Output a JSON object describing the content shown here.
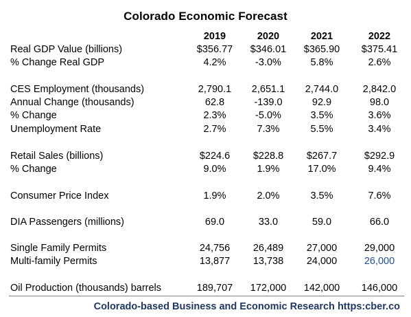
{
  "title": "Colorado Economic Forecast",
  "years": [
    "2019",
    "2020",
    "2021",
    "2022"
  ],
  "rows": [
    {
      "label": "Real GDP Value (billions)",
      "values": [
        "$356.77",
        "$346.01",
        "$365.90",
        "$375.41"
      ]
    },
    {
      "label": "% Change Real GDP",
      "values": [
        "4.2%",
        "-3.0%",
        "5.8%",
        "2.6%"
      ]
    },
    {
      "label": "CES Employment (thousands)",
      "values": [
        "2,790.1",
        "2,651.1",
        "2,744.0",
        "2,842.0"
      ]
    },
    {
      "label": "Annual Change (thousands)",
      "values": [
        "62.8",
        "-139.0",
        "92.9",
        "98.0"
      ]
    },
    {
      "label": "% Change",
      "values": [
        "2.3%",
        "-5.0%",
        "3.5%",
        "3.6%"
      ]
    },
    {
      "label": "Unemployment Rate",
      "values": [
        "2.7%",
        "7.3%",
        "5.5%",
        "3.4%"
      ]
    },
    {
      "label": "Retail Sales (billions)",
      "values": [
        "$224.6",
        "$228.8",
        "$267.7",
        "$292.9"
      ]
    },
    {
      "label": "% Change",
      "values": [
        "9.0%",
        "1.9%",
        "17.0%",
        "9.4%"
      ]
    },
    {
      "label": "Consumer Price Index",
      "values": [
        "1.9%",
        "2.0%",
        "3.5%",
        "7.6%"
      ]
    },
    {
      "label": "DIA Passengers (millions)",
      "values": [
        "69.0",
        "33.0",
        "59.0",
        "66.0"
      ]
    },
    {
      "label": "Single Family Permits",
      "values": [
        "24,756",
        "26,489",
        "27,000",
        "29,000"
      ]
    },
    {
      "label": "Multi-family Permits",
      "values": [
        "13,877",
        "13,738",
        "24,000",
        "26,000"
      ]
    },
    {
      "label": "Oil Production (thousands) barrels",
      "values": [
        "189,707",
        "172,000",
        "142,000",
        "146,000"
      ]
    }
  ],
  "footer": "Colorado-based Business and Economic Research  https:cber.co",
  "colors": {
    "footer_text": "#1f3864",
    "highlight_value": "#1f4e9c",
    "rule": "#808080"
  }
}
